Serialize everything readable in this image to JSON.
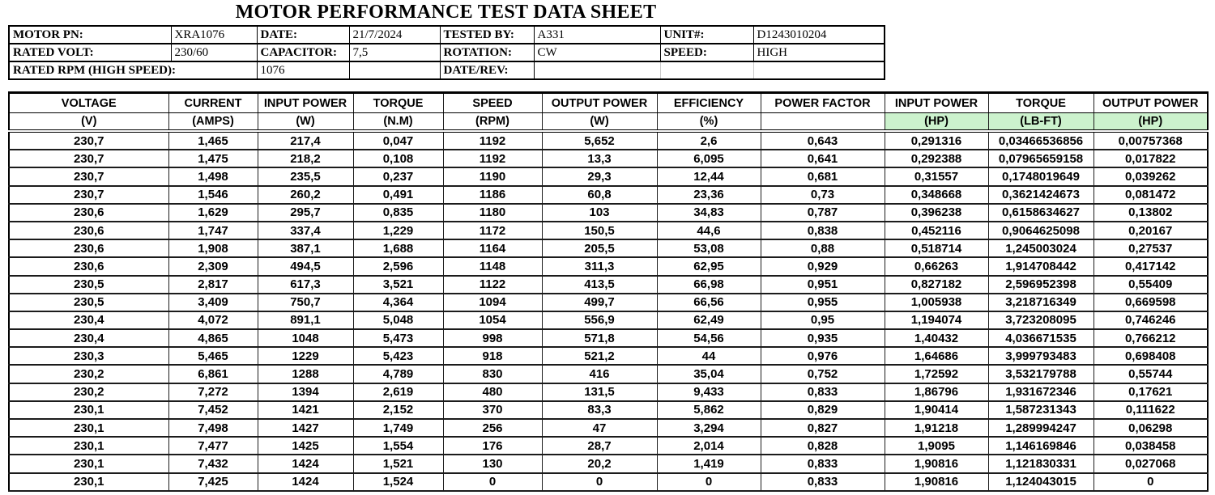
{
  "title": "MOTOR PERFORMANCE TEST DATA SHEET",
  "info": {
    "rows": [
      [
        {
          "label": "MOTOR PN:",
          "value": "XRA1076"
        },
        {
          "label": "DATE:",
          "value": "21/7/2024"
        },
        {
          "label": "TESTED BY:",
          "value": "A331"
        },
        {
          "label": "UNIT#:",
          "value": "D1243010204"
        }
      ],
      [
        {
          "label": "RATED VOLT:",
          "value": "230/60"
        },
        {
          "label": "CAPACITOR:",
          "value": "7,5"
        },
        {
          "label": "ROTATION:",
          "value": "CW"
        },
        {
          "label": "SPEED:",
          "value": "HIGH"
        }
      ]
    ],
    "row3": {
      "label": "RATED RPM (HIGH SPEED):",
      "value": "1076",
      "label2": "DATE/REV:",
      "value2": ""
    }
  },
  "table": {
    "unit_fill": "#CCF2CD",
    "columns": [
      {
        "name": "VOLTAGE",
        "unit": "(V)",
        "green": false
      },
      {
        "name": "CURRENT",
        "unit": "(AMPS)",
        "green": false
      },
      {
        "name": "INPUT POWER",
        "unit": "(W)",
        "green": false
      },
      {
        "name": "TORQUE",
        "unit": "(N.M)",
        "green": false
      },
      {
        "name": "SPEED",
        "unit": "(RPM)",
        "green": false
      },
      {
        "name": "OUTPUT POWER",
        "unit": "(W)",
        "green": false
      },
      {
        "name": "EFFICIENCY",
        "unit": "(%)",
        "green": false
      },
      {
        "name": "POWER FACTOR",
        "unit": "",
        "green": false
      },
      {
        "name": "INPUT POWER",
        "unit": "(HP)",
        "green": true
      },
      {
        "name": "TORQUE",
        "unit": "(LB-FT)",
        "green": true
      },
      {
        "name": "OUTPUT POWER",
        "unit": "(HP)",
        "green": true
      }
    ],
    "rows": [
      [
        "230,7",
        "1,465",
        "217,4",
        "0,047",
        "1192",
        "5,652",
        "2,6",
        "0,643",
        "0,291316",
        "0,03466536856",
        "0,00757368"
      ],
      [
        "230,7",
        "1,475",
        "218,2",
        "0,108",
        "1192",
        "13,3",
        "6,095",
        "0,641",
        "0,292388",
        "0,07965659158",
        "0,017822"
      ],
      [
        "230,7",
        "1,498",
        "235,5",
        "0,237",
        "1190",
        "29,3",
        "12,44",
        "0,681",
        "0,31557",
        "0,1748019649",
        "0,039262"
      ],
      [
        "230,7",
        "1,546",
        "260,2",
        "0,491",
        "1186",
        "60,8",
        "23,36",
        "0,73",
        "0,348668",
        "0,3621424673",
        "0,081472"
      ],
      [
        "230,6",
        "1,629",
        "295,7",
        "0,835",
        "1180",
        "103",
        "34,83",
        "0,787",
        "0,396238",
        "0,6158634627",
        "0,13802"
      ],
      [
        "230,6",
        "1,747",
        "337,4",
        "1,229",
        "1172",
        "150,5",
        "44,6",
        "0,838",
        "0,452116",
        "0,9064625098",
        "0,20167"
      ],
      [
        "230,6",
        "1,908",
        "387,1",
        "1,688",
        "1164",
        "205,5",
        "53,08",
        "0,88",
        "0,518714",
        "1,245003024",
        "0,27537"
      ],
      [
        "230,6",
        "2,309",
        "494,5",
        "2,596",
        "1148",
        "311,3",
        "62,95",
        "0,929",
        "0,66263",
        "1,914708442",
        "0,417142"
      ],
      [
        "230,5",
        "2,817",
        "617,3",
        "3,521",
        "1122",
        "413,5",
        "66,98",
        "0,951",
        "0,827182",
        "2,596952398",
        "0,55409"
      ],
      [
        "230,5",
        "3,409",
        "750,7",
        "4,364",
        "1094",
        "499,7",
        "66,56",
        "0,955",
        "1,005938",
        "3,218716349",
        "0,669598"
      ],
      [
        "230,4",
        "4,072",
        "891,1",
        "5,048",
        "1054",
        "556,9",
        "62,49",
        "0,95",
        "1,194074",
        "3,723208095",
        "0,746246"
      ],
      [
        "230,4",
        "4,865",
        "1048",
        "5,473",
        "998",
        "571,8",
        "54,56",
        "0,935",
        "1,40432",
        "4,036671535",
        "0,766212"
      ],
      [
        "230,3",
        "5,465",
        "1229",
        "5,423",
        "918",
        "521,2",
        "44",
        "0,976",
        "1,64686",
        "3,999793483",
        "0,698408"
      ],
      [
        "230,2",
        "6,861",
        "1288",
        "4,789",
        "830",
        "416",
        "35,04",
        "0,752",
        "1,72592",
        "3,532179788",
        "0,55744"
      ],
      [
        "230,2",
        "7,272",
        "1394",
        "2,619",
        "480",
        "131,5",
        "9,433",
        "0,833",
        "1,86796",
        "1,931672346",
        "0,17621"
      ],
      [
        "230,1",
        "7,452",
        "1421",
        "2,152",
        "370",
        "83,3",
        "5,862",
        "0,829",
        "1,90414",
        "1,587231343",
        "0,111622"
      ],
      [
        "230,1",
        "7,498",
        "1427",
        "1,749",
        "256",
        "47",
        "3,294",
        "0,827",
        "1,91218",
        "1,289994247",
        "0,06298"
      ],
      [
        "230,1",
        "7,477",
        "1425",
        "1,554",
        "176",
        "28,7",
        "2,014",
        "0,828",
        "1,9095",
        "1,146169846",
        "0,038458"
      ],
      [
        "230,1",
        "7,432",
        "1424",
        "1,521",
        "130",
        "20,2",
        "1,419",
        "0,833",
        "1,90816",
        "1,121830331",
        "0,027068"
      ],
      [
        "230,1",
        "7,425",
        "1424",
        "1,524",
        "0",
        "0",
        "0",
        "0,833",
        "1,90816",
        "1,124043015",
        "0"
      ]
    ]
  }
}
